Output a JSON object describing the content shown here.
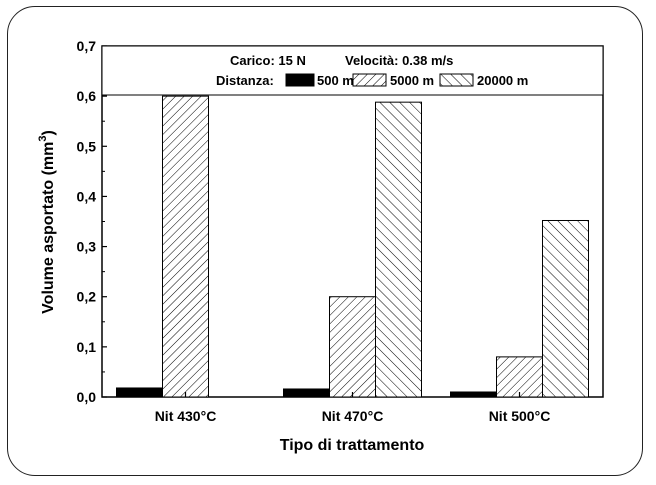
{
  "chart_data": {
    "type": "bar",
    "title": "",
    "xlabel": "Tipo di trattamento",
    "ylabel": "Volume asportato (mm",
    "ylabel_sup": "3",
    "ylabel_close": ")",
    "ylim": [
      0.0,
      0.7
    ],
    "yticks": [
      0.0,
      0.1,
      0.2,
      0.3,
      0.4,
      0.5,
      0.6,
      0.7
    ],
    "ytick_labels": [
      "0,0",
      "0,1",
      "0,2",
      "0,3",
      "0,4",
      "0,5",
      "0,6",
      "0,7"
    ],
    "categories": [
      "Nit 430°C",
      "Nit 470°C",
      "Nit 500°C"
    ],
    "series": [
      {
        "name": "500 m",
        "values": [
          0.018,
          0.016,
          0.01
        ],
        "pattern": "solid"
      },
      {
        "name": "5000 m",
        "values": [
          0.6,
          0.2,
          0.08
        ],
        "pattern": "forward-hatch"
      },
      {
        "name": "20000 m",
        "values": [
          null,
          0.588,
          0.352
        ],
        "pattern": "back-hatch"
      }
    ],
    "legend": {
      "line1_left": "Carico: 15 N",
      "line1_right": "Velocità: 0.38 m/s",
      "line2_label": "Distanza:",
      "position": "top"
    },
    "grid": false,
    "colors": {
      "bar_fill": "#000000",
      "hatch": "#000000",
      "axis": "#000000"
    }
  }
}
